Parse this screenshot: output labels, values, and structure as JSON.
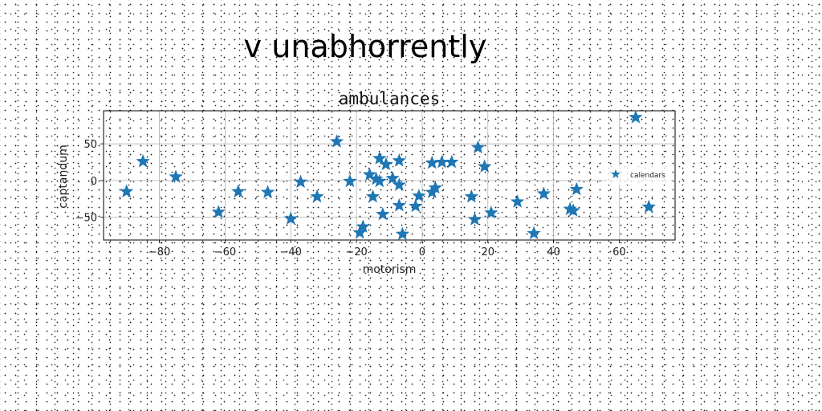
{
  "suptitle": "v unabhorrently",
  "chart_data": {
    "type": "scatter",
    "title": "ambulances",
    "xlabel": "motorism",
    "ylabel": "captandum",
    "xlim": [
      -97,
      77
    ],
    "ylim": [
      -81,
      95
    ],
    "xticks": [
      -80,
      -60,
      -40,
      -20,
      0,
      20,
      40,
      60
    ],
    "yticks": [
      -50,
      0,
      50
    ],
    "grid": true,
    "legend": "right",
    "marker": "star",
    "color": "#1f77b4",
    "series": [
      {
        "name": "calendars",
        "points": [
          [
            -90,
            -15
          ],
          [
            -85,
            26
          ],
          [
            -75,
            5
          ],
          [
            -62,
            -43
          ],
          [
            -56,
            -15
          ],
          [
            -47,
            -16
          ],
          [
            -40,
            -52
          ],
          [
            -37,
            -2
          ],
          [
            -32,
            -22
          ],
          [
            -26,
            53
          ],
          [
            -22,
            -1
          ],
          [
            -19,
            -71
          ],
          [
            -18,
            -63
          ],
          [
            -16,
            8
          ],
          [
            -15,
            -22
          ],
          [
            -14,
            2
          ],
          [
            -13,
            30
          ],
          [
            -13,
            -1
          ],
          [
            -12,
            -46
          ],
          [
            -11,
            22
          ],
          [
            -9,
            3
          ],
          [
            -7,
            27
          ],
          [
            -7,
            -6
          ],
          [
            -7,
            -34
          ],
          [
            -6,
            -73
          ],
          [
            -2,
            -35
          ],
          [
            -1,
            -21
          ],
          [
            3,
            24
          ],
          [
            3,
            -16
          ],
          [
            4,
            -10
          ],
          [
            6,
            25
          ],
          [
            9,
            25
          ],
          [
            15,
            -22
          ],
          [
            16,
            -53
          ],
          [
            17,
            45
          ],
          [
            19,
            19
          ],
          [
            21,
            -44
          ],
          [
            29,
            -29
          ],
          [
            34,
            -72
          ],
          [
            37,
            -18
          ],
          [
            45,
            -39
          ],
          [
            46,
            -41
          ],
          [
            47,
            -12
          ],
          [
            65,
            86
          ],
          [
            69,
            -36
          ]
        ]
      }
    ]
  }
}
